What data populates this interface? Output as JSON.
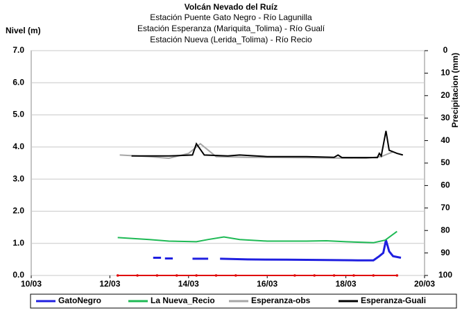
{
  "chart_data": {
    "type": "line",
    "title": "Volcán Nevado del Ruíz",
    "subtitles": [
      "Estación Puente Gato Negro - Río Lagunilla",
      "Estación Esperanza (Mariquita_Tolima) - Río Gualí",
      "Estación Nueva (Lerida_Tolima) - Río Recio"
    ],
    "ylabel": "Nivel (m)",
    "y2label": "Precipitacion (mm)",
    "xlim": [
      10,
      20
    ],
    "xticks": [
      {
        "value": 10,
        "label": "10/03"
      },
      {
        "value": 12,
        "label": "12/03"
      },
      {
        "value": 14,
        "label": "14/03"
      },
      {
        "value": 16,
        "label": "16/03"
      },
      {
        "value": 18,
        "label": "18/03"
      },
      {
        "value": 20,
        "label": "20/03"
      }
    ],
    "ylim": [
      0,
      7
    ],
    "yticks": [
      {
        "value": 0,
        "label": "0.0"
      },
      {
        "value": 1,
        "label": "1.0"
      },
      {
        "value": 2,
        "label": "2.0"
      },
      {
        "value": 3,
        "label": "3.0"
      },
      {
        "value": 4,
        "label": "4.0"
      },
      {
        "value": 5,
        "label": "5.0"
      },
      {
        "value": 6,
        "label": "6.0"
      },
      {
        "value": 7,
        "label": "7.0"
      }
    ],
    "y2lim": [
      100,
      0
    ],
    "y2ticks": [
      0,
      10,
      20,
      30,
      40,
      50,
      60,
      70,
      80,
      90,
      100
    ],
    "grid": true,
    "legend": "bottom",
    "series": [
      {
        "name": "GatoNegro",
        "color": "#1f1fe0",
        "x": [
          13.1,
          13.3,
          13.35,
          13.4,
          13.6,
          13.65,
          14.1,
          14.5,
          14.6,
          14.8,
          15.5,
          16.5,
          17.5,
          18.3,
          18.7,
          18.85,
          18.95,
          19.02,
          19.1,
          19.2,
          19.4
        ],
        "values": [
          0.55,
          0.55,
          null,
          0.53,
          0.53,
          null,
          0.52,
          0.52,
          null,
          0.52,
          0.5,
          0.49,
          0.48,
          0.47,
          0.47,
          0.6,
          0.7,
          1.1,
          0.75,
          0.6,
          0.55
        ]
      },
      {
        "name": "La Nueva_Recio",
        "color": "#1db954",
        "x": [
          12.2,
          13,
          13.5,
          14.2,
          14.5,
          14.9,
          15.3,
          16,
          17,
          17.5,
          18,
          18.7,
          19,
          19.3
        ],
        "values": [
          1.18,
          1.12,
          1.07,
          1.05,
          1.12,
          1.2,
          1.12,
          1.07,
          1.07,
          1.08,
          1.05,
          1.02,
          1.1,
          1.37
        ]
      },
      {
        "name": "Esperanza-obs",
        "color": "#a6a6a6",
        "x": [
          12.25,
          13,
          13.5,
          14,
          14.3,
          14.7,
          15.5,
          16.5,
          17.5,
          18.5,
          18.9,
          19.2
        ],
        "values": [
          3.75,
          3.7,
          3.65,
          3.8,
          4.1,
          3.7,
          3.68,
          3.67,
          3.66,
          3.65,
          3.7,
          3.85
        ]
      },
      {
        "name": "Esperanza-Guali",
        "color": "#000000",
        "x": [
          12.55,
          13.5,
          14.1,
          14.2,
          14.4,
          15,
          15.3,
          16,
          17,
          17.7,
          17.8,
          17.9,
          18.5,
          18.8,
          18.85,
          18.9,
          19.02,
          19.1,
          19.3,
          19.45
        ],
        "values": [
          3.72,
          3.72,
          3.75,
          4.1,
          3.75,
          3.72,
          3.75,
          3.7,
          3.7,
          3.68,
          3.75,
          3.67,
          3.67,
          3.67,
          3.8,
          3.72,
          4.5,
          3.9,
          3.8,
          3.75
        ]
      }
    ],
    "precipitation": {
      "color": "#e00000",
      "axis": "y2",
      "x": [
        12.2,
        12.7,
        13.2,
        13.7,
        14.2,
        14.7,
        15.2,
        16.7,
        17.2,
        17.7,
        18.2,
        18.7,
        19.3
      ],
      "values": [
        100,
        100,
        100,
        100,
        100,
        100,
        100,
        100,
        100,
        100,
        100,
        100,
        100
      ]
    }
  }
}
